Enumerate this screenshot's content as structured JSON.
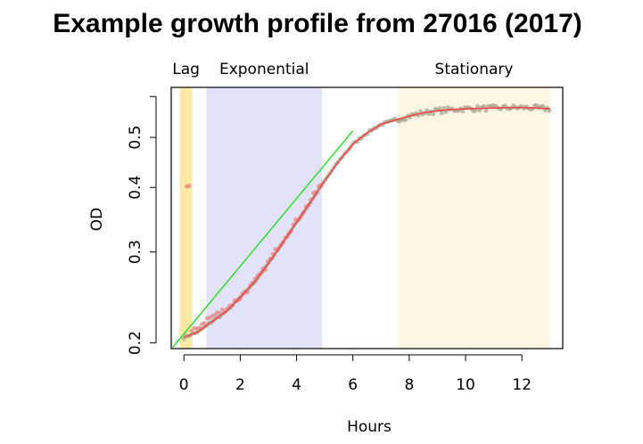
{
  "chart_data": {
    "type": "scatter",
    "title": "Example growth profile from 27016 (2017)",
    "xlabel": "Hours",
    "ylabel": "OD",
    "y_scale": "log",
    "xlim": [
      -0.45,
      13.45
    ],
    "ylim": [
      0.195,
      0.625
    ],
    "x_ticks": [
      0,
      2,
      4,
      6,
      8,
      10,
      12
    ],
    "y_ticks": [
      0.2,
      0.3,
      0.4,
      0.5
    ],
    "y_minor_ticks": [
      0.6
    ],
    "phases": [
      {
        "name": "Lag",
        "x_start": -0.15,
        "x_end": 0.3,
        "color": "#fde9a6"
      },
      {
        "name": "Exponential",
        "x_start": 0.8,
        "x_end": 4.9,
        "color": "#e2e3fb"
      },
      {
        "name": "Stationary",
        "x_start": 7.6,
        "x_end": 13.0,
        "color": "#fdf6e2"
      }
    ],
    "series": [
      {
        "role": "observed points (grey)",
        "color": "#a8a892",
        "x": [
          0.0,
          0.5,
          1.0,
          1.5,
          2.0,
          2.5,
          3.0,
          3.5,
          4.0,
          4.5,
          5.0,
          5.5,
          6.0,
          6.5,
          7.0,
          7.5,
          8.0,
          8.5,
          9.0,
          9.5,
          10.0,
          10.5,
          11.0,
          11.5,
          12.0,
          12.5,
          13.0
        ],
        "y": [
          0.205,
          0.21,
          0.22,
          0.23,
          0.245,
          0.262,
          0.285,
          0.312,
          0.342,
          0.375,
          0.412,
          0.45,
          0.485,
          0.51,
          0.53,
          0.54,
          0.55,
          0.558,
          0.563,
          0.566,
          0.568,
          0.569,
          0.57,
          0.571,
          0.571,
          0.57,
          0.568
        ]
      },
      {
        "role": "observed points (red)",
        "color": "#e88a8a",
        "x": [
          0.2,
          0.5,
          0.8,
          1.2,
          1.6,
          2.0,
          2.4,
          2.8,
          3.2,
          3.6,
          4.0,
          4.4,
          4.8
        ],
        "y": [
          0.208,
          0.214,
          0.222,
          0.228,
          0.235,
          0.245,
          0.258,
          0.275,
          0.298,
          0.322,
          0.345,
          0.37,
          0.402
        ]
      },
      {
        "role": "fitted curve",
        "color": "#e8504f",
        "x": [
          0.0,
          0.5,
          1.0,
          1.5,
          2.0,
          2.5,
          3.0,
          3.5,
          4.0,
          4.5,
          5.0,
          5.5,
          6.0,
          6.5,
          7.0,
          7.5,
          8.0,
          8.5,
          9.0,
          9.5,
          10.0,
          10.5,
          11.0,
          11.5,
          12.0,
          12.5,
          13.0
        ],
        "y": [
          0.205,
          0.21,
          0.22,
          0.23,
          0.245,
          0.262,
          0.285,
          0.312,
          0.342,
          0.375,
          0.412,
          0.45,
          0.485,
          0.51,
          0.53,
          0.54,
          0.55,
          0.558,
          0.563,
          0.566,
          0.568,
          0.569,
          0.57,
          0.571,
          0.571,
          0.57,
          0.568
        ]
      },
      {
        "role": "exponential tangent line",
        "color": "#22dd22",
        "x": [
          -0.4,
          6.0
        ],
        "y": [
          0.196,
          0.515
        ]
      }
    ]
  }
}
